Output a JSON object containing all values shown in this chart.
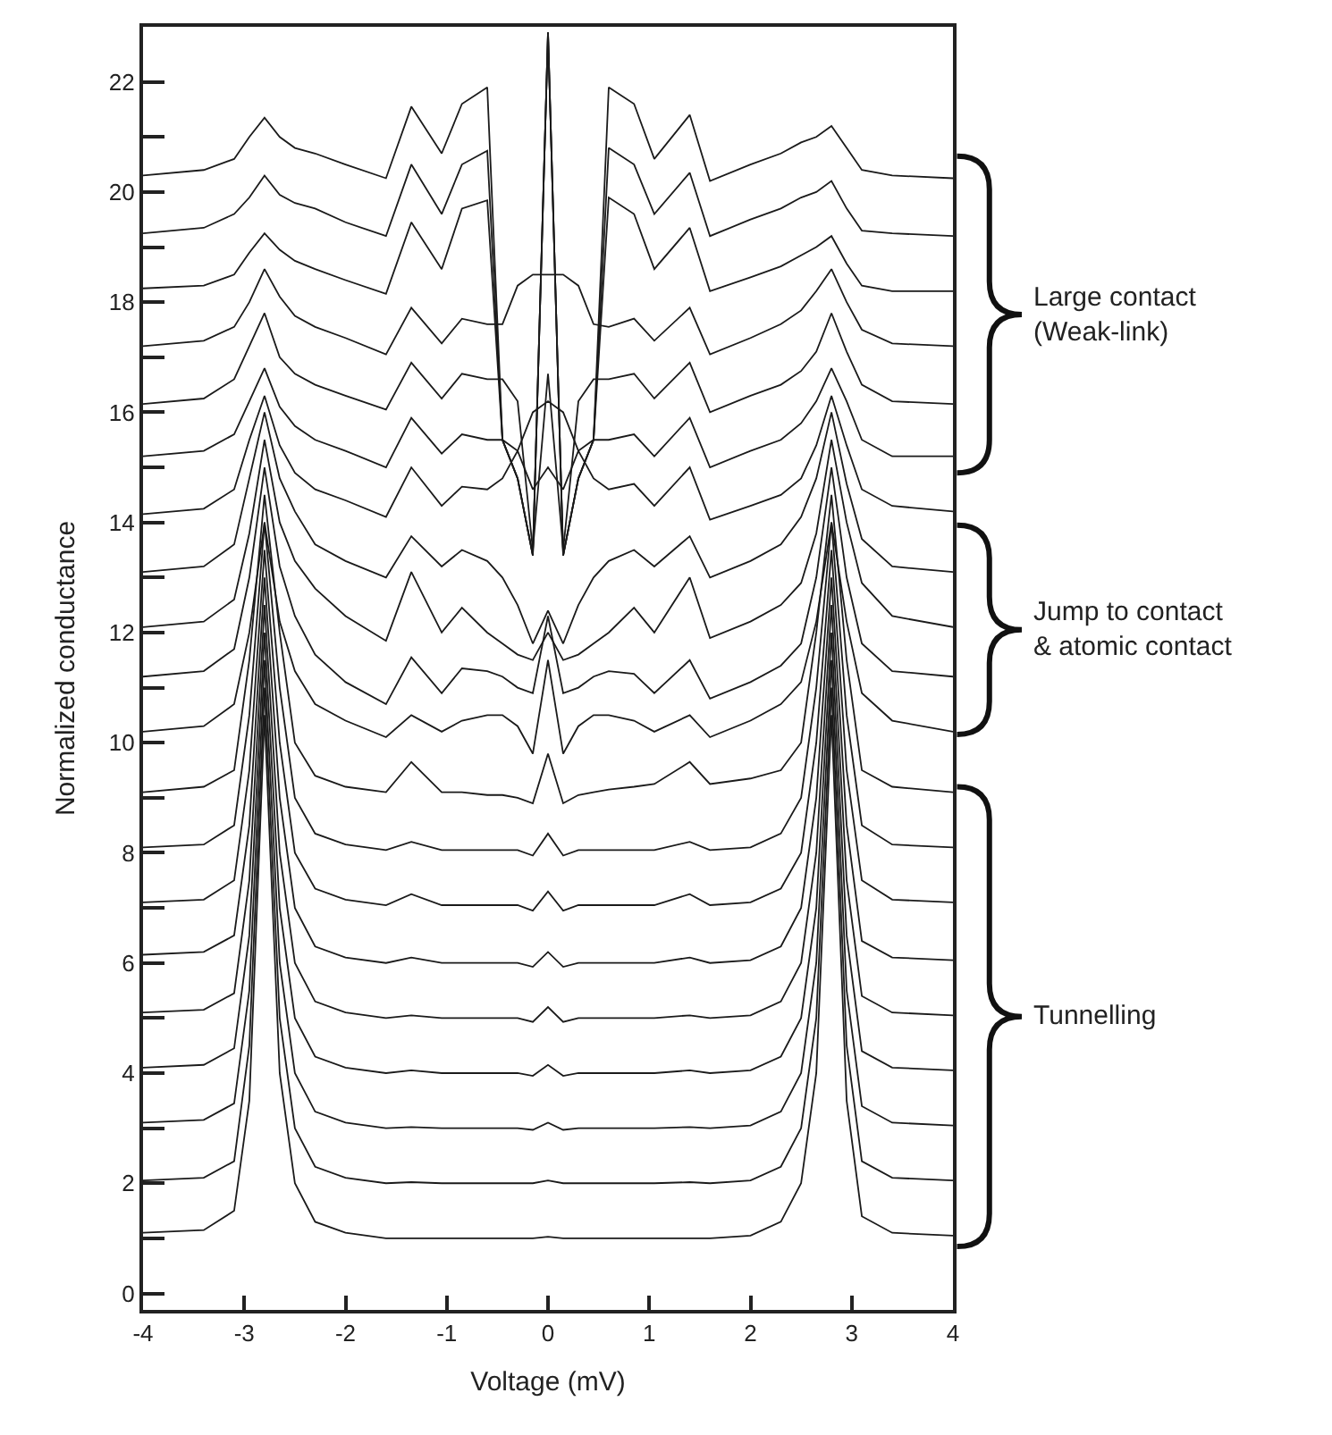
{
  "chart_data": {
    "type": "line",
    "xlabel": "Voltage (mV)",
    "ylabel": "Normalized conductance",
    "xlim": [
      -4,
      4
    ],
    "ylim": [
      -0.3,
      23
    ],
    "xticks": [
      -4,
      -3,
      -2,
      -1,
      0,
      1,
      2,
      3,
      4
    ],
    "yticks": [
      0,
      {
        "value": 1,
        "label": null
      },
      2,
      {
        "value": 3,
        "label": null
      },
      4,
      {
        "value": 5,
        "label": null
      },
      6,
      {
        "value": 7,
        "label": null
      },
      8,
      {
        "value": 9,
        "label": null
      },
      10,
      {
        "value": 11,
        "label": null
      },
      12,
      {
        "value": 13,
        "label": null
      },
      14,
      {
        "value": 15,
        "label": null
      },
      16,
      {
        "value": 17,
        "label": null
      },
      18,
      {
        "value": 19,
        "label": null
      },
      20,
      {
        "value": 21,
        "label": null
      },
      22
    ],
    "marker": "none",
    "line_style": "solid",
    "annotations": [
      "Large contact\n(Weak-link)",
      "Jump to contact\n& atomic contact",
      "Tunnelling"
    ],
    "x": [
      -4,
      -3.4,
      -3.1,
      -2.95,
      -2.8,
      -2.65,
      -2.5,
      -2.3,
      -2.0,
      -1.6,
      -1.35,
      -1.05,
      -0.85,
      -0.6,
      -0.45,
      -0.3,
      -0.15,
      0,
      0.15,
      0.3,
      0.45,
      0.6,
      0.85,
      1.05,
      1.4,
      1.6,
      2.0,
      2.3,
      2.5,
      2.65,
      2.8,
      2.95,
      3.1,
      3.4,
      4
    ],
    "series": [
      {
        "color": "#1a1a1a",
        "values": [
          1.1,
          1.15,
          1.5,
          3.5,
          10.5,
          4.0,
          2.0,
          1.3,
          1.1,
          1.0,
          1.0,
          1.0,
          1.0,
          1.0,
          1.0,
          1.0,
          1.0,
          1.03,
          1.0,
          1.0,
          1.0,
          1.0,
          1.0,
          1.0,
          1.0,
          1.0,
          1.05,
          1.3,
          2.0,
          4.0,
          10.5,
          3.5,
          1.4,
          1.1,
          1.05
        ]
      },
      {
        "color": "#1a1a1a",
        "values": [
          2.05,
          2.1,
          2.4,
          4.5,
          11.0,
          5.0,
          3.0,
          2.3,
          2.1,
          2.0,
          2.02,
          2.0,
          2.0,
          2.0,
          2.0,
          2.0,
          2.0,
          2.05,
          2.0,
          2.0,
          2.0,
          2.0,
          2.0,
          2.0,
          2.02,
          2.0,
          2.05,
          2.3,
          3.0,
          5.0,
          11.0,
          4.5,
          2.4,
          2.1,
          2.05
        ]
      },
      {
        "color": "#1a1a1a",
        "values": [
          3.1,
          3.15,
          3.45,
          5.5,
          11.5,
          6.0,
          4.0,
          3.3,
          3.1,
          3.0,
          3.02,
          3.0,
          3.0,
          3.0,
          3.0,
          3.0,
          2.97,
          3.1,
          2.97,
          3.0,
          3.0,
          3.0,
          3.0,
          3.0,
          3.02,
          3.0,
          3.05,
          3.3,
          4.0,
          6.0,
          11.5,
          5.5,
          3.4,
          3.1,
          3.05
        ]
      },
      {
        "color": "#1a1a1a",
        "values": [
          4.1,
          4.15,
          4.45,
          6.5,
          12.0,
          7.0,
          5.0,
          4.3,
          4.1,
          4.0,
          4.05,
          4.0,
          4.0,
          4.0,
          4.0,
          4.0,
          3.95,
          4.15,
          3.95,
          4.0,
          4.0,
          4.0,
          4.0,
          4.0,
          4.05,
          4.0,
          4.05,
          4.3,
          5.0,
          7.0,
          12.0,
          6.5,
          4.4,
          4.1,
          4.05
        ]
      },
      {
        "color": "#1a1a1a",
        "values": [
          5.1,
          5.15,
          5.45,
          7.5,
          12.5,
          8.0,
          6.0,
          5.3,
          5.1,
          5.0,
          5.05,
          5.0,
          5.0,
          5.0,
          5.0,
          5.0,
          4.93,
          5.2,
          4.93,
          5.0,
          5.0,
          5.0,
          5.0,
          5.0,
          5.05,
          5.0,
          5.05,
          5.3,
          6.0,
          8.0,
          12.5,
          7.5,
          5.4,
          5.1,
          5.05
        ]
      },
      {
        "color": "#1a1a1a",
        "values": [
          6.15,
          6.2,
          6.5,
          8.5,
          13.0,
          9.0,
          7.0,
          6.3,
          6.1,
          6.0,
          6.1,
          6.0,
          6.0,
          6.0,
          6.0,
          6.0,
          5.93,
          6.2,
          5.93,
          6.0,
          6.0,
          6.0,
          6.0,
          6.0,
          6.1,
          6.0,
          6.05,
          6.3,
          7.0,
          9.0,
          13.0,
          8.5,
          6.4,
          6.1,
          6.05
        ]
      },
      {
        "color": "#1a1a1a",
        "values": [
          7.1,
          7.15,
          7.5,
          9.5,
          13.5,
          10.0,
          8.0,
          7.35,
          7.15,
          7.05,
          7.25,
          7.05,
          7.05,
          7.05,
          7.05,
          7.05,
          6.95,
          7.3,
          6.95,
          7.05,
          7.05,
          7.05,
          7.05,
          7.05,
          7.25,
          7.05,
          7.1,
          7.35,
          8.0,
          10.0,
          13.5,
          9.5,
          7.5,
          7.15,
          7.1
        ]
      },
      {
        "color": "#1a1a1a",
        "values": [
          8.1,
          8.15,
          8.5,
          10.5,
          14.0,
          11.0,
          9.0,
          8.35,
          8.15,
          8.05,
          8.2,
          8.05,
          8.05,
          8.05,
          8.05,
          8.05,
          7.95,
          8.35,
          7.95,
          8.05,
          8.05,
          8.05,
          8.05,
          8.05,
          8.2,
          8.05,
          8.1,
          8.35,
          9.0,
          11.0,
          14.0,
          10.5,
          8.5,
          8.15,
          8.1
        ]
      },
      {
        "color": "#1a1a1a",
        "values": [
          9.1,
          9.2,
          9.5,
          11.5,
          14.5,
          12.0,
          10.0,
          9.4,
          9.2,
          9.1,
          9.65,
          9.1,
          9.1,
          9.05,
          9.05,
          9.0,
          8.9,
          9.8,
          8.9,
          9.05,
          9.1,
          9.15,
          9.2,
          9.25,
          9.65,
          9.25,
          9.35,
          9.5,
          10.0,
          12.0,
          14.5,
          11.5,
          9.5,
          9.2,
          9.1
        ]
      },
      {
        "color": "#1a1a1a",
        "values": [
          10.2,
          10.3,
          10.7,
          12.0,
          14.0,
          12.2,
          11.3,
          10.7,
          10.4,
          10.1,
          10.5,
          10.2,
          10.4,
          10.5,
          10.5,
          10.3,
          9.8,
          11.5,
          9.8,
          10.3,
          10.5,
          10.5,
          10.4,
          10.2,
          10.5,
          10.1,
          10.4,
          10.7,
          11.1,
          12.2,
          14.0,
          12.2,
          10.9,
          10.4,
          10.2
        ]
      },
      {
        "color": "#1a1a1a",
        "values": [
          11.2,
          11.3,
          11.7,
          13.0,
          15.0,
          13.2,
          12.3,
          11.6,
          11.1,
          10.7,
          11.55,
          10.9,
          11.35,
          11.3,
          11.2,
          11.0,
          10.9,
          12.3,
          10.9,
          11.0,
          11.2,
          11.3,
          11.25,
          10.9,
          11.5,
          10.8,
          11.1,
          11.4,
          11.8,
          13.0,
          15.0,
          13.0,
          11.8,
          11.3,
          11.2
        ]
      },
      {
        "color": "#1a1a1a",
        "values": [
          12.1,
          12.2,
          12.6,
          13.8,
          15.5,
          14.0,
          13.3,
          12.8,
          12.3,
          11.85,
          13.1,
          12.0,
          12.45,
          12.0,
          11.8,
          11.6,
          11.5,
          12.0,
          11.5,
          11.6,
          11.8,
          12.0,
          12.45,
          12.0,
          13.0,
          11.9,
          12.2,
          12.5,
          12.9,
          13.8,
          15.5,
          14.0,
          12.9,
          12.3,
          12.1
        ]
      },
      {
        "color": "#1a1a1a",
        "values": [
          13.1,
          13.2,
          13.6,
          14.8,
          16.0,
          14.8,
          14.2,
          13.6,
          13.3,
          13.0,
          13.75,
          13.2,
          13.5,
          13.3,
          13.0,
          12.5,
          11.8,
          12.4,
          11.8,
          12.5,
          13.0,
          13.3,
          13.5,
          13.2,
          13.75,
          13.0,
          13.3,
          13.6,
          14.1,
          14.8,
          16.0,
          14.7,
          13.7,
          13.2,
          13.1
        ]
      },
      {
        "color": "#1a1a1a",
        "values": [
          14.15,
          14.25,
          14.6,
          15.5,
          16.3,
          15.4,
          14.9,
          14.6,
          14.4,
          14.1,
          15.0,
          14.3,
          14.65,
          14.6,
          14.8,
          15.3,
          16.0,
          16.2,
          16.0,
          15.3,
          14.8,
          14.6,
          14.7,
          14.3,
          15.0,
          14.05,
          14.3,
          14.5,
          14.8,
          15.4,
          16.3,
          15.4,
          14.6,
          14.3,
          14.2
        ]
      },
      {
        "color": "#1a1a1a",
        "values": [
          15.2,
          15.3,
          15.6,
          16.2,
          16.8,
          16.1,
          15.75,
          15.5,
          15.3,
          15.0,
          15.9,
          15.25,
          15.6,
          15.5,
          15.5,
          15.3,
          14.6,
          15.0,
          14.6,
          15.3,
          15.5,
          15.5,
          15.6,
          15.2,
          15.9,
          15.0,
          15.3,
          15.5,
          15.8,
          16.2,
          16.8,
          16.2,
          15.5,
          15.2,
          15.2
        ]
      },
      {
        "color": "#1a1a1a",
        "values": [
          16.15,
          16.25,
          16.6,
          17.2,
          17.8,
          17.0,
          16.7,
          16.5,
          16.3,
          16.05,
          16.9,
          16.25,
          16.7,
          16.6,
          16.6,
          16.2,
          13.5,
          16.7,
          13.5,
          16.2,
          16.6,
          16.6,
          16.7,
          16.25,
          16.9,
          16.0,
          16.3,
          16.5,
          16.75,
          17.1,
          17.8,
          17.1,
          16.5,
          16.2,
          16.15
        ]
      },
      {
        "color": "#1a1a1a",
        "values": [
          17.2,
          17.3,
          17.55,
          18.0,
          18.6,
          18.1,
          17.75,
          17.55,
          17.35,
          17.05,
          17.9,
          17.25,
          17.7,
          17.6,
          17.6,
          18.3,
          18.5,
          18.5,
          18.5,
          18.3,
          17.6,
          17.55,
          17.7,
          17.3,
          17.9,
          17.05,
          17.35,
          17.6,
          17.85,
          18.2,
          18.6,
          18.0,
          17.5,
          17.25,
          17.2
        ]
      },
      {
        "color": "#1a1a1a",
        "values": [
          18.25,
          18.3,
          18.5,
          18.9,
          19.25,
          18.95,
          18.75,
          18.6,
          18.4,
          18.15,
          19.45,
          18.6,
          19.7,
          19.85,
          15.5,
          14.8,
          13.4,
          22.9,
          13.4,
          14.8,
          15.5,
          19.9,
          19.6,
          18.6,
          19.35,
          18.2,
          18.45,
          18.65,
          18.85,
          19.0,
          19.2,
          18.7,
          18.3,
          18.2,
          18.2
        ]
      },
      {
        "color": "#1a1a1a",
        "values": [
          19.25,
          19.35,
          19.6,
          19.9,
          20.3,
          19.95,
          19.8,
          19.7,
          19.45,
          19.2,
          20.5,
          19.6,
          20.5,
          20.75,
          15.5,
          14.8,
          13.4,
          22.9,
          13.4,
          14.8,
          15.5,
          20.8,
          20.5,
          19.6,
          20.35,
          19.2,
          19.5,
          19.7,
          19.9,
          20.0,
          20.2,
          19.7,
          19.3,
          19.25,
          19.2
        ]
      },
      {
        "color": "#1a1a1a",
        "values": [
          20.3,
          20.4,
          20.6,
          21.0,
          21.35,
          21.0,
          20.8,
          20.7,
          20.5,
          20.25,
          21.55,
          20.7,
          21.6,
          21.9,
          15.5,
          14.8,
          13.4,
          22.9,
          13.4,
          14.8,
          15.5,
          21.9,
          21.6,
          20.6,
          21.4,
          20.2,
          20.5,
          20.7,
          20.9,
          21.0,
          21.2,
          20.8,
          20.4,
          20.3,
          20.25
        ]
      }
    ]
  }
}
